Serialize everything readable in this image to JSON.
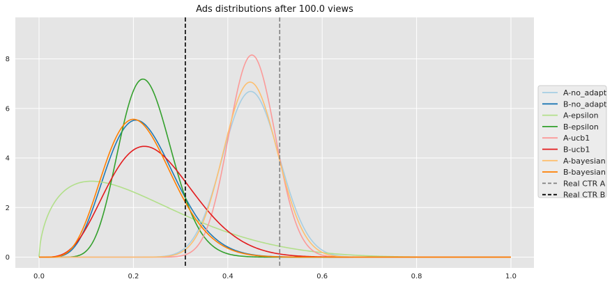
{
  "chart_data": {
    "type": "line",
    "title": "Ads distributions after 100.0 views",
    "xlabel": "",
    "ylabel": "",
    "xlim": [
      0,
      1
    ],
    "ylim": [
      0,
      9.5
    ],
    "x_ticks": [
      "0.0",
      "0.2",
      "0.4",
      "0.6",
      "0.8",
      "1.0"
    ],
    "y_ticks": [
      "0",
      "2",
      "4",
      "6",
      "8"
    ],
    "grid": true,
    "legend_position": "right",
    "x_range": [
      0,
      1
    ],
    "series": [
      {
        "name": "A-no_adapt",
        "kind": "beta",
        "alpha": 31.5,
        "beta": 38.5,
        "color": "#a6cee3",
        "style": "solid"
      },
      {
        "name": "B-no_adapt",
        "kind": "beta",
        "alpha": 7.2,
        "beta": 25,
        "color": "#1f78b4",
        "style": "solid"
      },
      {
        "name": "A-epsilon",
        "kind": "beta",
        "alpha": 1.6,
        "beta": 5.8,
        "color": "#b2df8a",
        "style": "solid"
      },
      {
        "name": "B-epsilon",
        "kind": "beta",
        "alpha": 13,
        "beta": 43.5,
        "color": "#33a02c",
        "style": "solid"
      },
      {
        "name": "A-ucb1",
        "kind": "beta",
        "alpha": 47,
        "beta": 57,
        "color": "#fb9a99",
        "style": "solid"
      },
      {
        "name": "B-ucb1",
        "kind": "beta",
        "alpha": 5.6,
        "beta": 17,
        "color": "#e31a1c",
        "style": "solid"
      },
      {
        "name": "A-bayesian",
        "kind": "beta",
        "alpha": 35,
        "beta": 43,
        "color": "#fdbf6f",
        "style": "solid"
      },
      {
        "name": "B-bayesian",
        "kind": "beta",
        "alpha": 7,
        "beta": 25,
        "color": "#ff7f00",
        "style": "solid"
      }
    ],
    "vlines": [
      {
        "name": "Real CTR A",
        "x": 0.51,
        "color": "#808080",
        "style": "dashed"
      },
      {
        "name": "Real CTR B",
        "x": 0.31,
        "color": "#000000",
        "style": "dashed"
      }
    ]
  }
}
